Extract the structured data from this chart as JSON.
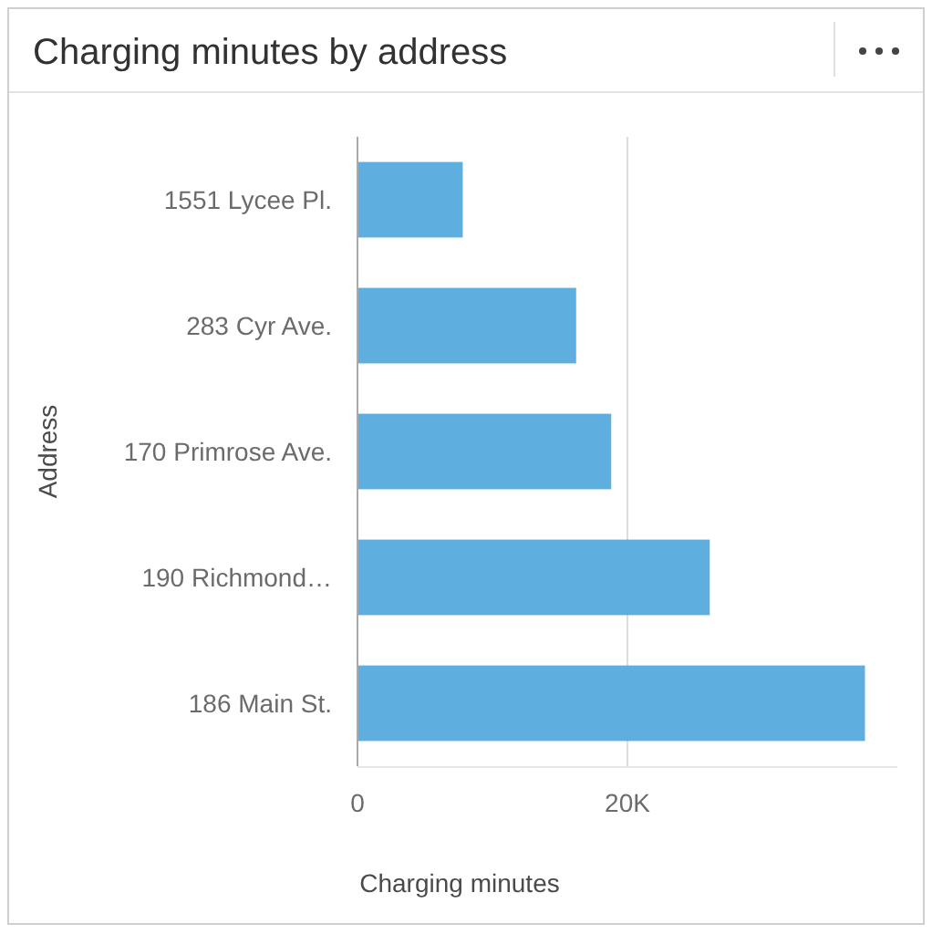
{
  "chart_data": {
    "type": "bar",
    "title": "Charging minutes by address",
    "orientation": "horizontal",
    "categories": [
      "1551 Lycee Pl.",
      "283 Cyr Ave.",
      "170 Primrose Ave.",
      "190 Richmond…",
      "186 Main St."
    ],
    "values": [
      7800,
      16200,
      18800,
      26100,
      37600
    ],
    "color": "#5eaee0",
    "xlim": [
      0,
      40000
    ],
    "xticks": [
      {
        "value": 0,
        "label": "0"
      },
      {
        "value": 20000,
        "label": "20K"
      }
    ],
    "xlabel": "Charging minutes",
    "ylabel": "Address",
    "grid": "x"
  }
}
